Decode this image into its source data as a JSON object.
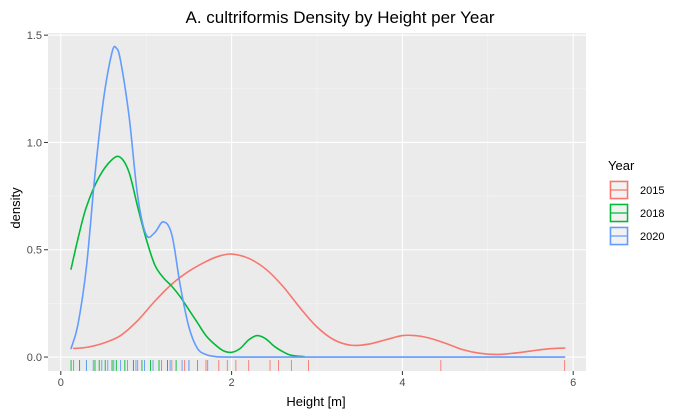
{
  "chart_data": {
    "type": "line",
    "title": "A. cultriformis Density by Height per Year",
    "xlabel": "Height [m]",
    "ylabel": "density",
    "xlim": [
      -0.15,
      6.15
    ],
    "ylim": [
      -0.065,
      1.51
    ],
    "x_ticks": [
      0,
      2,
      4,
      6
    ],
    "y_ticks": [
      0.0,
      0.5,
      1.0,
      1.5
    ],
    "x_tick_labels": [
      "0",
      "2",
      "4",
      "6"
    ],
    "y_tick_labels": [
      "0.0",
      "0.5",
      "1.0",
      "1.5"
    ],
    "grid": true,
    "legend": {
      "title": "Year",
      "position": "right"
    },
    "series": [
      {
        "name": "2015",
        "color": "#F8766D",
        "x": [
          0.15,
          0.3,
          0.5,
          0.7,
          0.9,
          1.1,
          1.3,
          1.5,
          1.7,
          1.85,
          2.0,
          2.2,
          2.4,
          2.6,
          2.8,
          3.0,
          3.2,
          3.4,
          3.6,
          3.8,
          4.0,
          4.15,
          4.3,
          4.5,
          4.7,
          4.9,
          5.1,
          5.3,
          5.5,
          5.7,
          5.9
        ],
        "y": [
          0.04,
          0.045,
          0.065,
          0.1,
          0.17,
          0.26,
          0.34,
          0.4,
          0.445,
          0.47,
          0.48,
          0.46,
          0.41,
          0.33,
          0.23,
          0.14,
          0.08,
          0.055,
          0.06,
          0.08,
          0.1,
          0.1,
          0.09,
          0.065,
          0.035,
          0.018,
          0.012,
          0.018,
          0.028,
          0.038,
          0.042
        ]
      },
      {
        "name": "2018",
        "color": "#00BA38",
        "x": [
          0.12,
          0.2,
          0.3,
          0.45,
          0.6,
          0.7,
          0.8,
          0.9,
          1.0,
          1.1,
          1.2,
          1.3,
          1.4,
          1.5,
          1.6,
          1.7,
          1.8,
          1.9,
          2.0,
          2.1,
          2.2,
          2.3,
          2.4,
          2.5,
          2.6,
          2.7,
          2.85
        ],
        "y": [
          0.41,
          0.55,
          0.7,
          0.84,
          0.92,
          0.93,
          0.86,
          0.7,
          0.55,
          0.43,
          0.37,
          0.33,
          0.28,
          0.22,
          0.16,
          0.1,
          0.06,
          0.03,
          0.022,
          0.04,
          0.08,
          0.1,
          0.085,
          0.05,
          0.025,
          0.008,
          0.002
        ]
      },
      {
        "name": "2020",
        "color": "#619CFF",
        "x": [
          0.12,
          0.2,
          0.3,
          0.4,
          0.5,
          0.6,
          0.65,
          0.7,
          0.8,
          0.9,
          1.0,
          1.1,
          1.2,
          1.3,
          1.4,
          1.5,
          1.6,
          1.7,
          1.8,
          2.0,
          3.0,
          4.0,
          5.0,
          5.9
        ],
        "y": [
          0.04,
          0.15,
          0.42,
          0.85,
          1.2,
          1.42,
          1.44,
          1.38,
          1.12,
          0.75,
          0.57,
          0.58,
          0.63,
          0.57,
          0.33,
          0.14,
          0.04,
          0.012,
          0.003,
          0.0,
          0.0,
          0.0,
          0.0,
          0.0
        ]
      }
    ],
    "rug": {
      "2015": [
        0.9,
        1.3,
        1.45,
        1.6,
        1.7,
        1.85,
        1.95,
        2.05,
        2.2,
        2.45,
        2.55,
        2.7,
        2.9,
        4.45,
        5.9
      ],
      "2018": [
        0.12,
        0.22,
        0.3,
        0.4,
        0.45,
        0.52,
        0.6,
        0.65,
        0.75,
        0.85,
        0.95,
        1.05,
        1.15,
        1.25,
        1.35,
        1.5
      ],
      "2020": [
        0.15,
        0.3,
        0.38,
        0.48,
        0.55,
        0.62,
        0.7,
        0.78,
        0.88,
        0.98,
        1.08,
        1.18,
        1.28,
        1.42,
        1.5,
        1.6,
        1.72
      ]
    }
  }
}
